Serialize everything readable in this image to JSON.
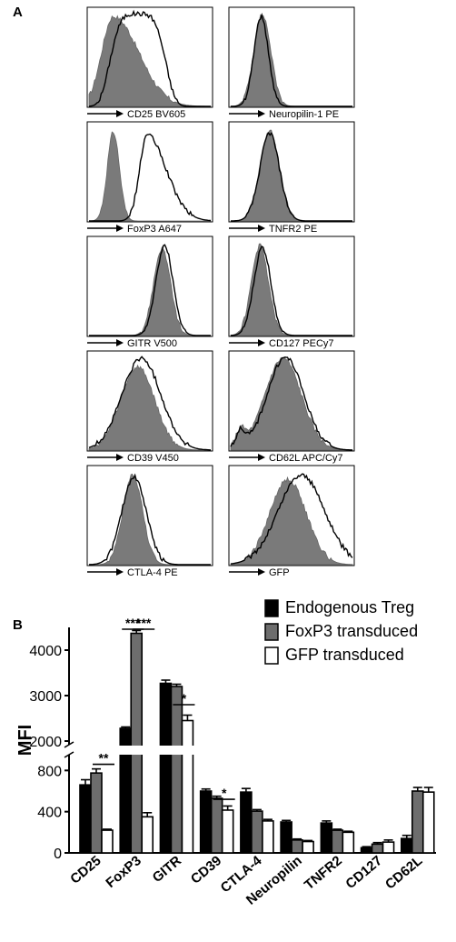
{
  "figure": {
    "panel_a_label": "A",
    "panel_b_label": "B"
  },
  "histograms": [
    {
      "label": "CD25 BV605",
      "shade": {
        "c": 0.2,
        "w": 0.16,
        "h": 0.95,
        "skew": 1.3
      },
      "line": {
        "c": 0.4,
        "w": 0.26,
        "h": 0.98,
        "flat": true
      }
    },
    {
      "label": "Neuropilin-1 PE",
      "shade": {
        "c": 0.26,
        "w": 0.07,
        "h": 0.97
      },
      "line": {
        "c": 0.25,
        "w": 0.06,
        "h": 0.95
      }
    },
    {
      "label": "FoxP3 A647",
      "shade": {
        "c": 0.2,
        "w": 0.05,
        "h": 0.94
      },
      "line": {
        "c": 0.48,
        "w": 0.22,
        "h": 0.92,
        "tail": true
      }
    },
    {
      "label": "TNFR2 PE",
      "shade": {
        "c": 0.32,
        "w": 0.08,
        "h": 0.95
      },
      "line": {
        "c": 0.32,
        "w": 0.08,
        "h": 0.93
      }
    },
    {
      "label": "GITR V500",
      "shade": {
        "c": 0.6,
        "w": 0.07,
        "h": 0.92
      },
      "line": {
        "c": 0.62,
        "w": 0.07,
        "h": 0.95
      }
    },
    {
      "label": "CD127 PECy7",
      "shade": {
        "c": 0.24,
        "w": 0.07,
        "h": 0.95
      },
      "line": {
        "c": 0.26,
        "w": 0.07,
        "h": 0.93
      }
    },
    {
      "label": "CD39 V450",
      "shade": {
        "c": 0.4,
        "w": 0.14,
        "h": 0.88
      },
      "line": {
        "c": 0.43,
        "w": 0.16,
        "h": 0.97
      }
    },
    {
      "label": "CD62L APC/Cy7",
      "shade": {
        "c": 0.43,
        "w": 0.15,
        "h": 0.97,
        "lowbump": true
      },
      "line": {
        "c": 0.45,
        "w": 0.15,
        "h": 0.98,
        "lowbump": true
      }
    },
    {
      "label": "CTLA-4 PE",
      "shade": {
        "c": 0.36,
        "w": 0.08,
        "h": 0.95
      },
      "line": {
        "c": 0.37,
        "w": 0.1,
        "h": 0.93
      }
    },
    {
      "label": "GFP",
      "shade": {
        "c": 0.47,
        "w": 0.15,
        "h": 0.9
      },
      "line": {
        "c": 0.58,
        "w": 0.19,
        "h": 0.95
      }
    }
  ],
  "chart_data": {
    "type": "bar",
    "ylabel": "MFI",
    "categories": [
      "CD25",
      "FoxP3",
      "GITR",
      "CD39",
      "CTLA-4",
      "Neuropilin",
      "TNFR2",
      "CD127",
      "CD62L"
    ],
    "series": [
      {
        "name": "Endogenous Treg",
        "color": "#000000",
        "values": [
          660,
          2280,
          3270,
          600,
          590,
          300,
          290,
          50,
          140
        ],
        "errors": [
          50,
          30,
          70,
          20,
          35,
          15,
          20,
          10,
          30
        ]
      },
      {
        "name": "FoxP3 transduced",
        "color": "#6d6d6d",
        "values": [
          775,
          4370,
          3200,
          530,
          405,
          125,
          220,
          85,
          600
        ],
        "errors": [
          40,
          60,
          50,
          20,
          15,
          10,
          10,
          15,
          35
        ]
      },
      {
        "name": "GFP transduced",
        "color": "#ffffff",
        "values": [
          220,
          350,
          2450,
          415,
          310,
          110,
          200,
          105,
          590
        ],
        "errors": [
          10,
          40,
          120,
          40,
          15,
          10,
          10,
          20,
          45
        ]
      }
    ],
    "y_axis_broken": true,
    "y_lower_range": [
      0,
      900
    ],
    "y_lower_ticks": [
      "0",
      "400",
      "800"
    ],
    "y_upper_range": [
      2000,
      4500
    ],
    "y_upper_ticks": [
      "2000",
      "3000",
      "4000"
    ],
    "legend_position": "top-right",
    "significance": [
      {
        "category": 0,
        "from": 1,
        "to": 2,
        "label": "**",
        "y": 860
      },
      {
        "category": 1,
        "from": 0,
        "to": 1,
        "label": "***",
        "y": 4460
      },
      {
        "category": 1,
        "from": 1,
        "to": 2,
        "label": "***",
        "y": 4460
      },
      {
        "category": 2,
        "from": 1,
        "to": 2,
        "label": "*",
        "y": 2800
      },
      {
        "category": 3,
        "from": 1,
        "to": 2,
        "label": "*",
        "y": 520
      }
    ]
  }
}
